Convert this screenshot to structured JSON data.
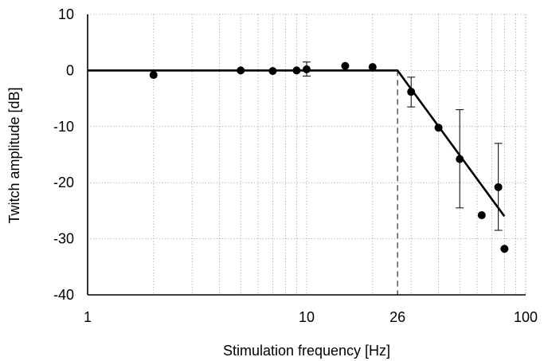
{
  "chart_data": {
    "type": "scatter",
    "xlabel": "Stimulation frequency [Hz]",
    "ylabel": "Twitch amplitude [dB]",
    "x_scale": "log",
    "xlim": [
      1,
      100
    ],
    "ylim": [
      -40,
      10
    ],
    "x_tick_labels": [
      {
        "value": 1,
        "label": "1"
      },
      {
        "value": 10,
        "label": "10"
      },
      {
        "value": 26,
        "label": "26"
      },
      {
        "value": 100,
        "label": "100"
      }
    ],
    "y_ticks": [
      {
        "value": 10,
        "label": "10"
      },
      {
        "value": 0,
        "label": "0"
      },
      {
        "value": -10,
        "label": "-10"
      },
      {
        "value": -20,
        "label": "-20"
      },
      {
        "value": -30,
        "label": "-30"
      },
      {
        "value": -40,
        "label": "-40"
      }
    ],
    "grid": true,
    "points": [
      {
        "x": 2,
        "y": -0.8
      },
      {
        "x": 5,
        "y": 0
      },
      {
        "x": 7,
        "y": -0.1
      },
      {
        "x": 9,
        "y": 0
      },
      {
        "x": 10,
        "y": 0.2,
        "err_low": -1.0,
        "err_high": 1.5
      },
      {
        "x": 15,
        "y": 0.8
      },
      {
        "x": 20,
        "y": 0.6
      },
      {
        "x": 30,
        "y": -3.8,
        "err_low": -6.5,
        "err_high": -1.2
      },
      {
        "x": 40,
        "y": -10.2
      },
      {
        "x": 50,
        "y": -15.8,
        "err_low": -24.5,
        "err_high": -7
      },
      {
        "x": 63,
        "y": -25.8
      },
      {
        "x": 75,
        "y": -20.8,
        "err_low": -28.5,
        "err_high": -13
      },
      {
        "x": 80,
        "y": -31.8
      }
    ],
    "fit_line": [
      {
        "x": 1,
        "y": 0
      },
      {
        "x": 26,
        "y": 0
      },
      {
        "x": 80,
        "y": -26
      }
    ],
    "corner_frequency": 26
  }
}
